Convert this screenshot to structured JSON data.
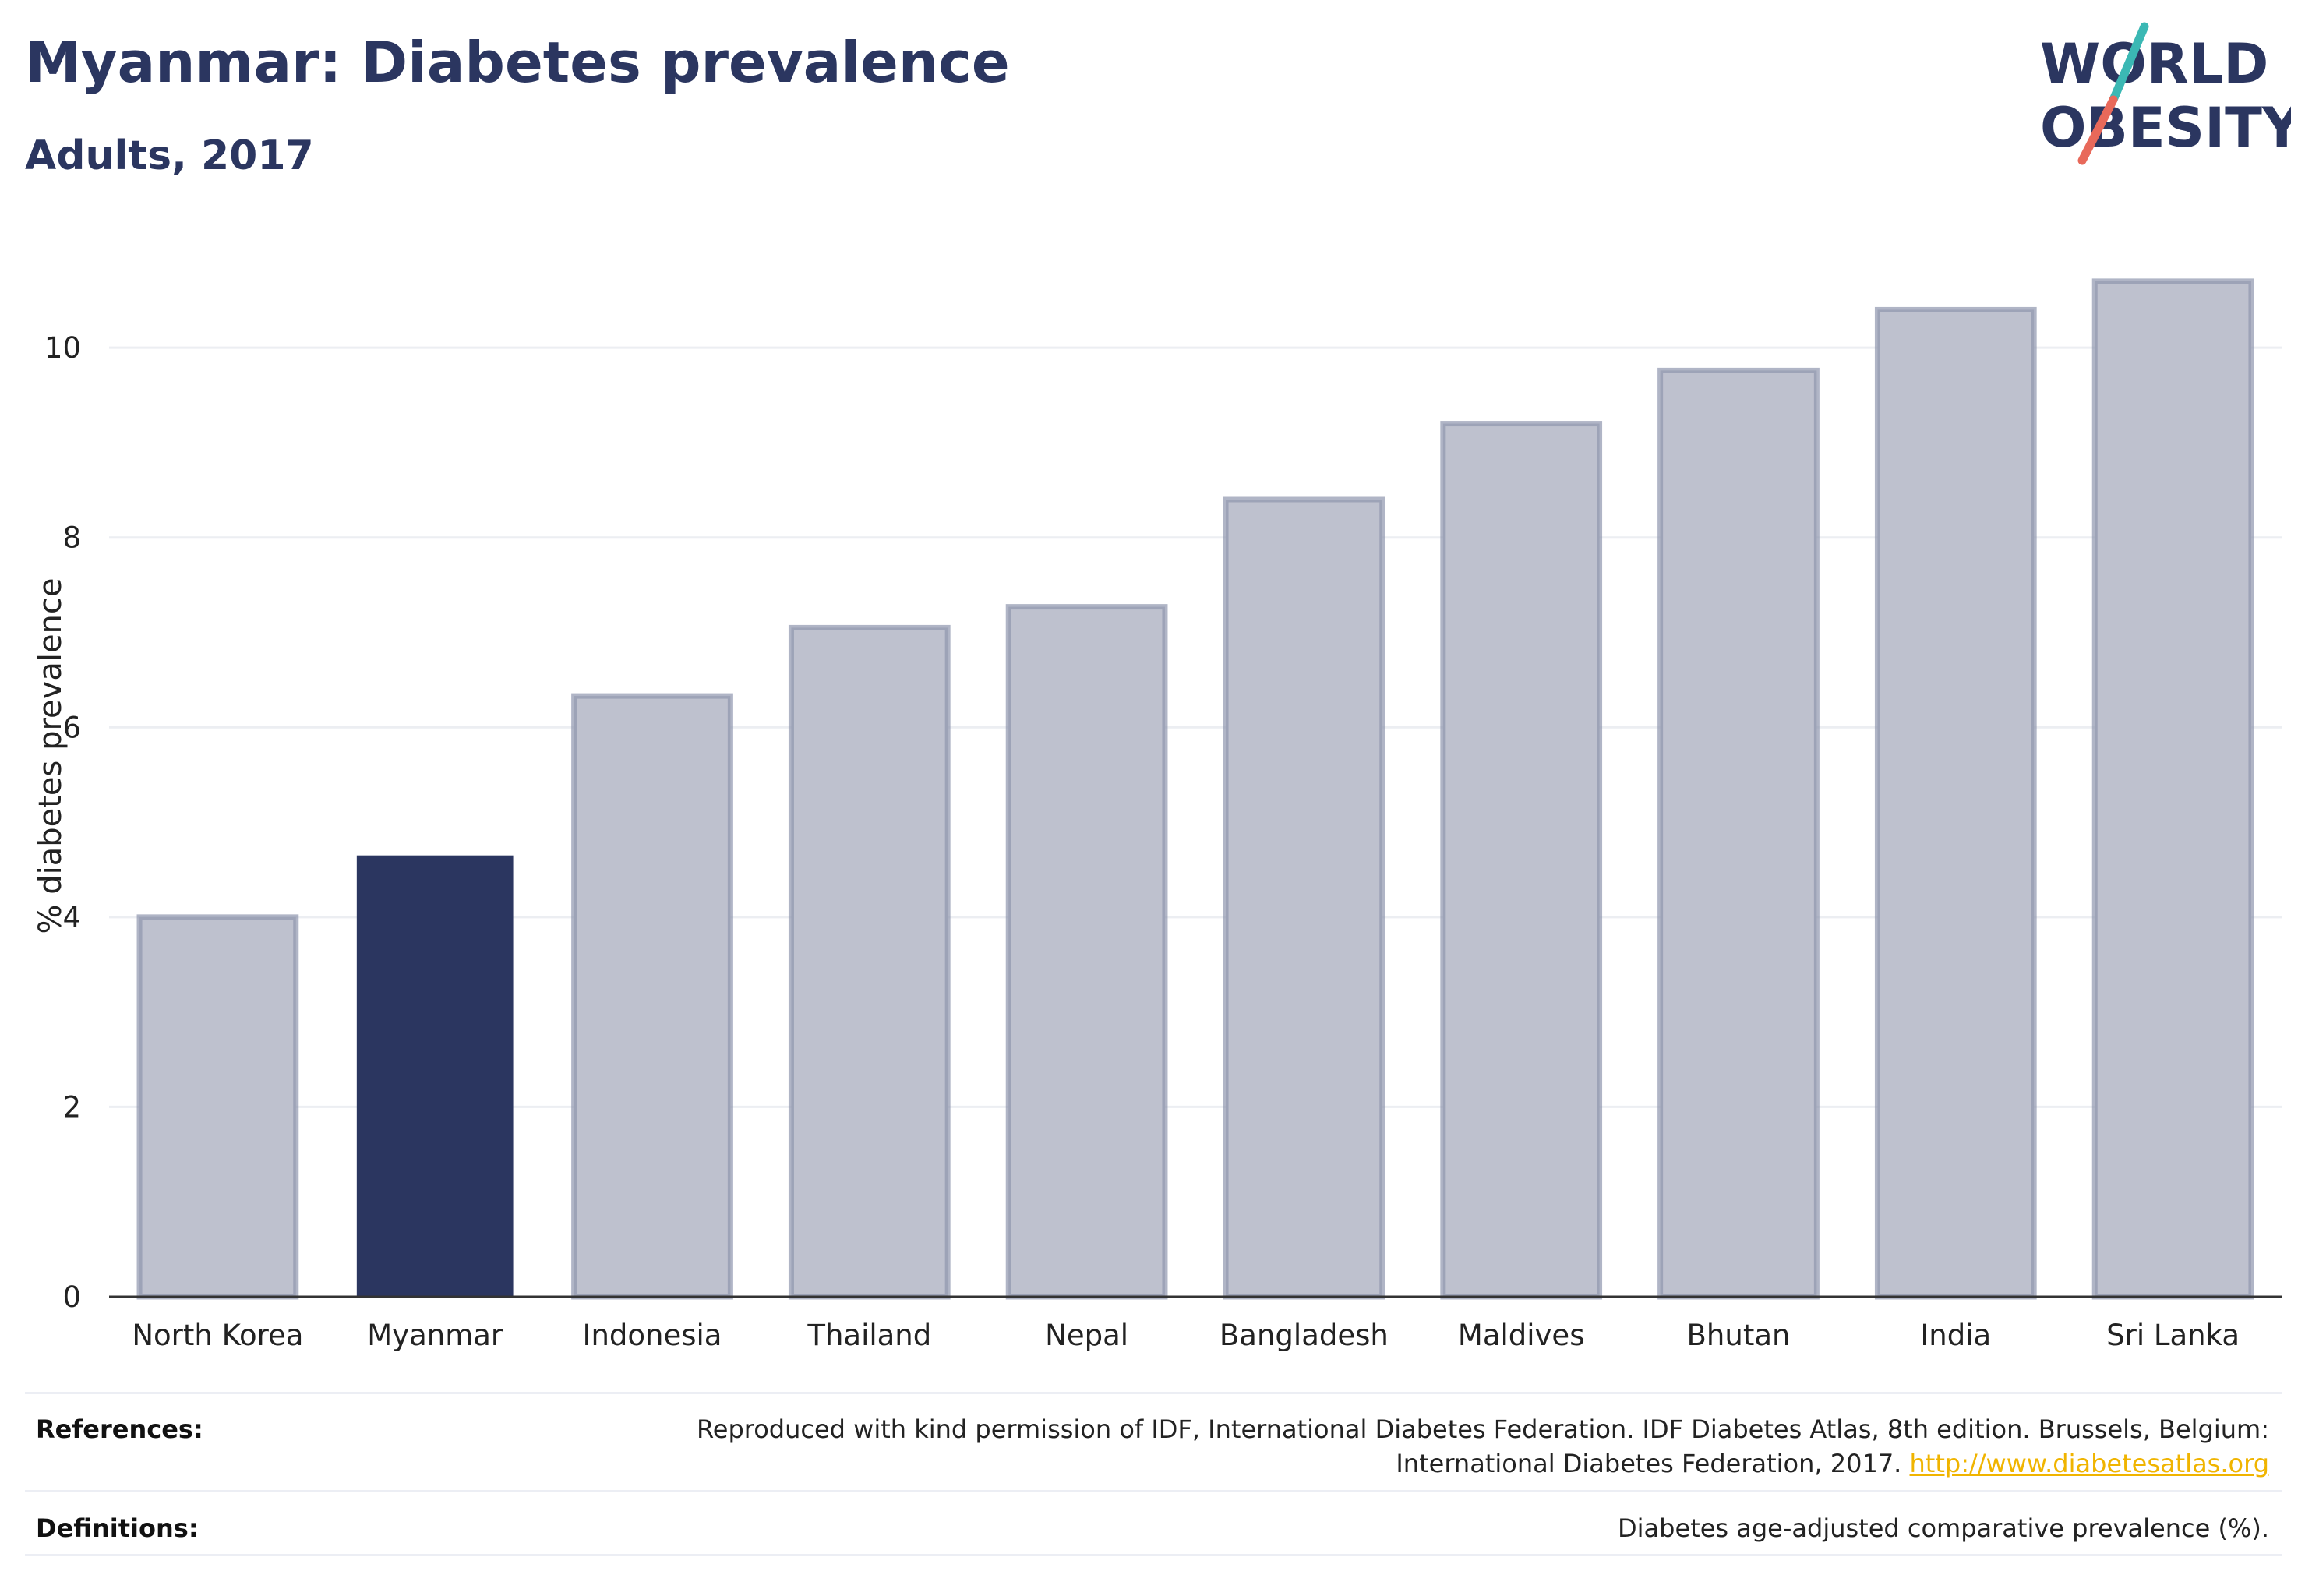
{
  "header": {
    "title": "Myanmar: Diabetes prevalence",
    "subtitle": "Adults, 2017",
    "logo_line1": "WORLD",
    "logo_line2": "OBESITY"
  },
  "chart_data": {
    "type": "bar",
    "categories": [
      "North Korea",
      "Myanmar",
      "Indonesia",
      "Thailand",
      "Nepal",
      "Bangladesh",
      "Maldives",
      "Bhutan",
      "India",
      "Sri Lanka"
    ],
    "values": [
      4.0,
      4.65,
      6.33,
      7.05,
      7.27,
      8.4,
      9.2,
      9.76,
      10.4,
      10.7
    ],
    "highlight": "Myanmar",
    "ylabel": "% diabetes prevalence",
    "xlabel": "",
    "ylim": [
      0,
      11.2
    ],
    "yticks": [
      0,
      2,
      4,
      6,
      8,
      10
    ],
    "grid": true,
    "colors": {
      "highlight": "#2b3660",
      "bar_fill": "#bec1ce",
      "bar_stroke": "#8f95ae",
      "grid": "#eceef2",
      "axis": "#333333"
    }
  },
  "footer": {
    "references_label": "References:",
    "references_text_line1": "Reproduced with kind permission of IDF, International Diabetes Federation. IDF Diabetes Atlas, 8th edition. Brussels, Belgium:",
    "references_text_line2": "International Diabetes Federation, 2017.",
    "references_link": "http://www.diabetesatlas.org",
    "definitions_label": "Definitions:",
    "definitions_text": "Diabetes age-adjusted comparative prevalence (%)."
  },
  "logo_colors": {
    "text": "#2b3660",
    "slash_top": "#3bb8b4",
    "slash_bottom": "#e8695a"
  }
}
